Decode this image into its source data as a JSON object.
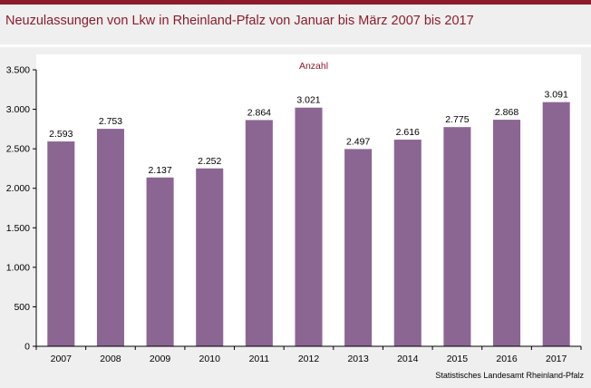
{
  "title": "Neuzulassungen von Lkw in Rheinland-Pfalz von Januar bis März 2007 bis 2017",
  "source": "Statistisches Landesamt Rheinland-Pfalz",
  "colors": {
    "accent": "#8c1c2c",
    "bar": "#8b6693",
    "background": "#efefef"
  },
  "chart_data": {
    "type": "bar",
    "title": "",
    "xlabel": "",
    "ylabel": "",
    "unit_label": "Anzahl",
    "categories": [
      "2007",
      "2008",
      "2009",
      "2010",
      "2011",
      "2012",
      "2013",
      "2014",
      "2015",
      "2016",
      "2017"
    ],
    "values": [
      2593,
      2753,
      2137,
      2252,
      2864,
      3021,
      2497,
      2616,
      2775,
      2868,
      3091
    ],
    "value_labels": [
      "2.593",
      "2.753",
      "2.137",
      "2.252",
      "2.864",
      "3.021",
      "2.497",
      "2.616",
      "2.775",
      "2.868",
      "3.091"
    ],
    "ylim": [
      0,
      3500
    ],
    "yticks": [
      0,
      500,
      1000,
      1500,
      2000,
      2500,
      3000,
      3500
    ],
    "ytick_labels": [
      "0",
      "500",
      "1.000",
      "1.500",
      "2.000",
      "2.500",
      "3.000",
      "3.500"
    ],
    "grid": false,
    "legend": "none"
  }
}
